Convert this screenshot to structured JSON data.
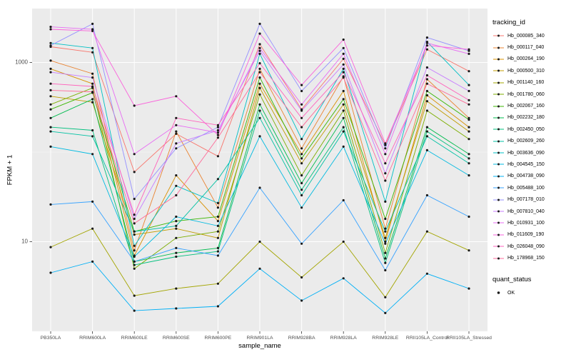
{
  "panel": {
    "bg": "#EBEBEB",
    "grid_major": "#FFFFFF",
    "grid_minor": "#F7F7F7",
    "point_color": "#1A1A1A",
    "tick_color": "#333333",
    "tick_label_color": "#4D4D4D"
  },
  "legend": {
    "tracking_title": "tracking_id",
    "quant_title": "quant_status",
    "quant_items": [
      {
        "label": "OK"
      }
    ]
  },
  "chart_data": {
    "type": "line",
    "title": "",
    "xlabel": "sample_name",
    "ylabel": "FPKM + 1",
    "y_scale": "log10",
    "ylim": [
      1,
      4000
    ],
    "y_ticks": [
      10,
      1000
    ],
    "y_minor": [
      1,
      100
    ],
    "legend_position": "right",
    "grid": true,
    "categories": [
      "PB350LA",
      "RRIM600LA",
      "RRIM600LE",
      "RRIM600SE",
      "RRIM600PE",
      "RRIM901LA",
      "RRIM928BA",
      "RRIM928LA",
      "RRIM928LE",
      "RRII105LA_Control",
      "RRII105LA_Stressed"
    ],
    "series": [
      {
        "name": "Hb_000085_340",
        "color": "#F8766D",
        "values": [
          1500,
          1300,
          60,
          160,
          90,
          1600,
          300,
          1100,
          120,
          1400,
          800
        ]
      },
      {
        "name": "Hb_000117_040",
        "color": "#EA8331",
        "values": [
          1050,
          750,
          8,
          170,
          24,
          850,
          110,
          700,
          14,
          650,
          240
        ]
      },
      {
        "name": "Hb_000264_190",
        "color": "#D89000",
        "values": [
          850,
          580,
          7,
          55,
          17,
          580,
          95,
          480,
          10,
          430,
          190
        ]
      },
      {
        "name": "Hb_000500_310",
        "color": "#C09B00",
        "values": [
          420,
          360,
          12,
          14,
          11,
          520,
          75,
          340,
          11,
          370,
          170
        ]
      },
      {
        "name": "Hb_001140_160",
        "color": "#A3A500",
        "values": [
          8.7,
          14,
          2.5,
          3,
          3.4,
          10,
          4,
          10,
          2.4,
          13,
          8
        ]
      },
      {
        "name": "Hb_001780_060",
        "color": "#7CAE00",
        "values": [
          340,
          520,
          5,
          11,
          13,
          440,
          55,
          290,
          7.5,
          290,
          140
        ]
      },
      {
        "name": "Hb_002067_160",
        "color": "#39B600",
        "values": [
          300,
          460,
          13,
          17,
          19,
          680,
          85,
          390,
          18,
          480,
          230
        ]
      },
      {
        "name": "Hb_002232_180",
        "color": "#00BB4E",
        "values": [
          240,
          390,
          6,
          7.5,
          8.5,
          340,
          45,
          240,
          6.5,
          190,
          95
        ]
      },
      {
        "name": "Hb_002450_050",
        "color": "#00BF7D",
        "values": [
          190,
          175,
          5.5,
          6.8,
          7.8,
          290,
          38,
          190,
          5.8,
          170,
          85
        ]
      },
      {
        "name": "Hb_002609_260",
        "color": "#00C1A3",
        "values": [
          170,
          150,
          13,
          15,
          50,
          240,
          33,
          170,
          13,
          150,
          75
        ]
      },
      {
        "name": "Hb_003636_090",
        "color": "#00BFC4",
        "values": [
          1650,
          1450,
          9,
          42,
          27,
          1250,
          140,
          850,
          28,
          1700,
          560
        ]
      },
      {
        "name": "Hb_004545_150",
        "color": "#00BAE0",
        "values": [
          115,
          95,
          6.8,
          19,
          15,
          150,
          24,
          115,
          9.5,
          105,
          55
        ]
      },
      {
        "name": "Hb_004738_090",
        "color": "#00B0F6",
        "values": [
          4.5,
          6,
          1.7,
          1.8,
          1.9,
          5,
          2.2,
          3.9,
          1.6,
          4.4,
          3
        ]
      },
      {
        "name": "Hb_005488_100",
        "color": "#35A2FF",
        "values": [
          26,
          28,
          6,
          8.5,
          7,
          40,
          9.5,
          29,
          4.8,
          33,
          19
        ]
      },
      {
        "name": "Hb_007178_010",
        "color": "#9590FF",
        "values": [
          1550,
          2700,
          30,
          110,
          190,
          2700,
          480,
          1450,
          110,
          1900,
          1350
        ]
      },
      {
        "name": "Hb_007810_040",
        "color": "#C77CFF",
        "values": [
          780,
          680,
          18,
          125,
          175,
          1350,
          290,
          950,
          58,
          880,
          480
        ]
      },
      {
        "name": "Hb_010931_100",
        "color": "#E76BF3",
        "values": [
          2500,
          2350,
          95,
          200,
          165,
          1450,
          340,
          1250,
          95,
          1650,
          1250
        ]
      },
      {
        "name": "Hb_011609_190",
        "color": "#FA62DB",
        "values": [
          2350,
          2250,
          330,
          420,
          155,
          2100,
          560,
          1800,
          125,
          1550,
          1400
        ]
      },
      {
        "name": "Hb_026048_090",
        "color": "#FF62BC",
        "values": [
          580,
          540,
          20,
          240,
          200,
          980,
          240,
          780,
          75,
          720,
          380
        ]
      },
      {
        "name": "Hb_178968_150",
        "color": "#FF6A98",
        "values": [
          490,
          470,
          16,
          33,
          145,
          780,
          190,
          680,
          48,
          580,
          340
        ]
      }
    ]
  }
}
